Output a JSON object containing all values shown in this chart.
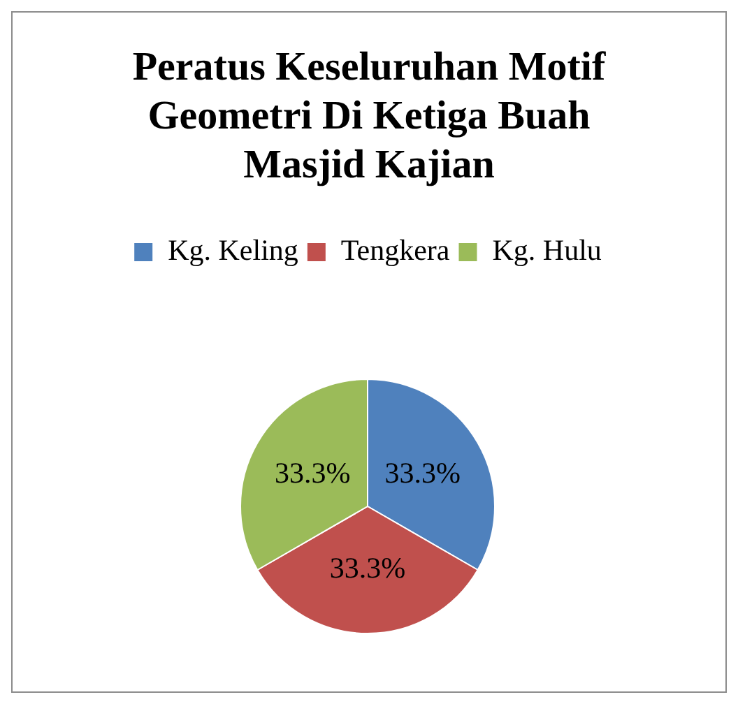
{
  "chart_data": {
    "type": "pie",
    "title": "Peratus Keseluruhan Motif Geometri Di Ketiga Buah Masjid Kajian",
    "categories": [
      "Kg. Keling",
      "Tengkera",
      "Kg. Hulu"
    ],
    "values": [
      33.3,
      33.3,
      33.3
    ],
    "colors": [
      "#4f81bd",
      "#c0504d",
      "#9bbb59"
    ],
    "value_labels": [
      "33.3%",
      "33.3%",
      "33.3%"
    ],
    "legend": "top"
  }
}
